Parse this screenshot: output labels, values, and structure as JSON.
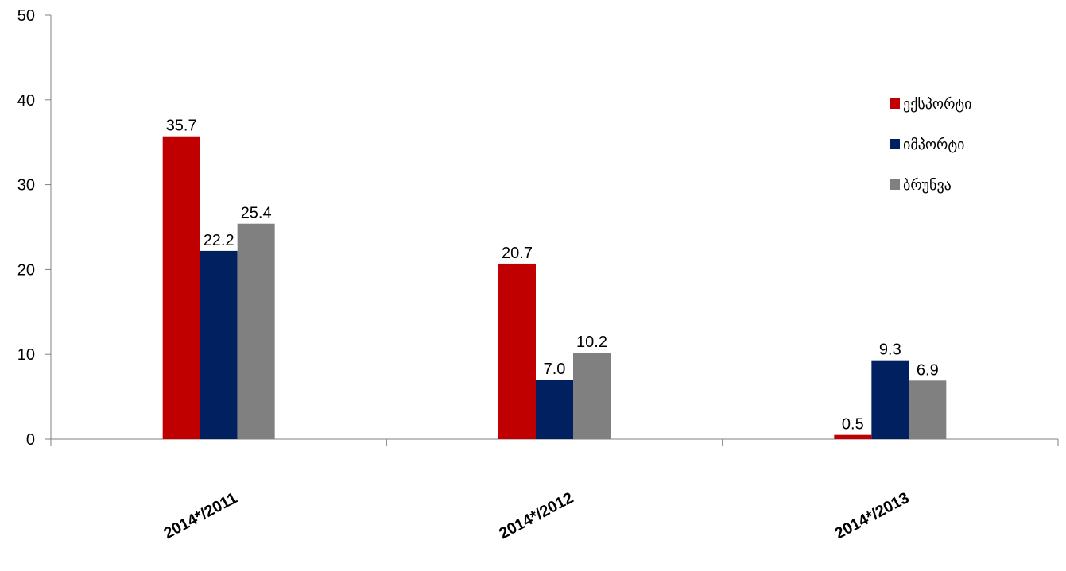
{
  "chart_data": {
    "type": "bar",
    "categories": [
      "2014*/2011",
      "2014*/2012",
      "2014*/2013"
    ],
    "series": [
      {
        "name": "ექსპორტი",
        "color": "#C00000",
        "values": [
          35.7,
          20.7,
          0.5
        ]
      },
      {
        "name": "იმპორტი",
        "color": "#002060",
        "values": [
          22.2,
          7.0,
          9.3
        ]
      },
      {
        "name": "ბრუნვა",
        "color": "#808080",
        "values": [
          25.4,
          10.2,
          6.9
        ]
      }
    ],
    "value_labels": [
      [
        "35.7",
        "20.7",
        "0.5"
      ],
      [
        "22.2",
        "7.0",
        "9.3"
      ],
      [
        "25.4",
        "10.2",
        "6.9"
      ]
    ],
    "ylim": [
      0,
      50
    ],
    "yticks": [
      "0",
      "10",
      "20",
      "30",
      "40",
      "50"
    ],
    "grid": false,
    "legend_position": "right"
  }
}
